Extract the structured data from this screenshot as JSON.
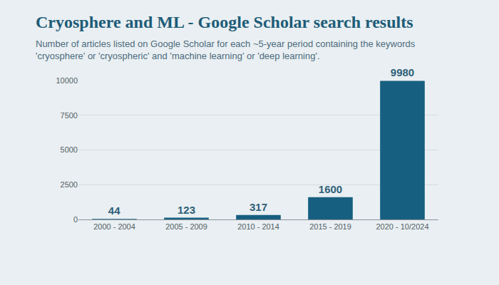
{
  "chart_data": {
    "type": "bar",
    "title": "Cryosphere and ML - Google Scholar search results",
    "subtitle": "Number of articles listed on Google Scholar for each ~5-year period containing the keywords 'cryosphere' or 'cryospheric' and 'machine learning' or 'deep learning'.",
    "categories": [
      "2000 - 2004",
      "2005 - 2009",
      "2010 - 2014",
      "2015 - 2019",
      "2020 - 10/2024"
    ],
    "values": [
      44,
      123,
      317,
      1600,
      9980
    ],
    "color": "#175f80",
    "ylim": [
      0,
      10000
    ],
    "yticks": [
      0,
      2500,
      5000,
      7500,
      10000
    ],
    "grid": true,
    "data_labels": true
  }
}
